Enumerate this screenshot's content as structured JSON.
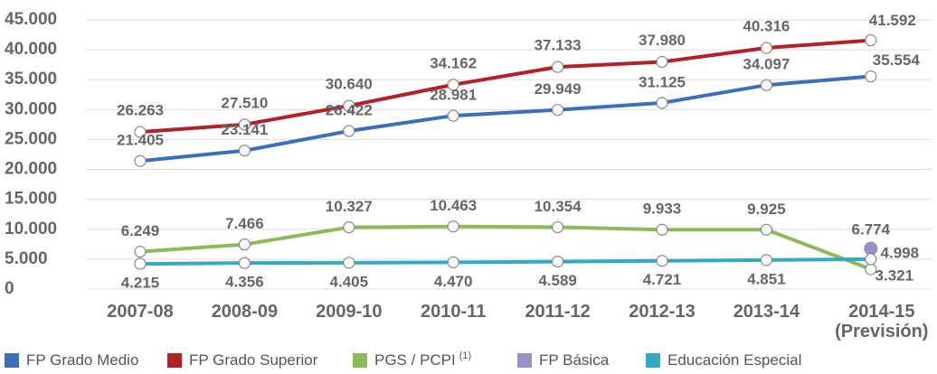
{
  "chart_data": {
    "type": "line",
    "categories": [
      "2007-08",
      "2008-09",
      "2009-10",
      "2010-11",
      "2011-12",
      "2012-13",
      "2013-14",
      "2014-15 (Previsión)"
    ],
    "ylim": [
      0,
      45000
    ],
    "yticks": [
      0,
      {
        "value": 5000,
        "label": "5.000"
      },
      {
        "value": 10000,
        "label": "10.000"
      },
      {
        "value": 15000,
        "label": "15.000"
      },
      {
        "value": 20000,
        "label": "20.000"
      },
      {
        "value": 25000,
        "label": "25.000"
      },
      {
        "value": 30000,
        "label": "30.000"
      },
      {
        "value": 35000,
        "label": "35.000"
      },
      {
        "value": 40000,
        "label": "40.000"
      },
      {
        "value": 45000,
        "label": "45.000"
      }
    ],
    "grid": true,
    "legend": "bottom",
    "series": [
      {
        "name": "FP Grado Medio",
        "color": "#3b70b8",
        "values": [
          21405,
          23141,
          26422,
          28981,
          29949,
          31125,
          34097,
          35554
        ],
        "value_labels": [
          "21.405",
          "23.141",
          "26.422",
          "28.981",
          "29.949",
          "31.125",
          "34.097",
          "35.554"
        ]
      },
      {
        "name": "FP Grado Superior",
        "color": "#b22126",
        "values": [
          26263,
          27510,
          30640,
          34162,
          37133,
          37980,
          40316,
          41592
        ],
        "value_labels": [
          "26.263",
          "27.510",
          "30.640",
          "34.162",
          "37.133",
          "37.980",
          "40.316",
          "41.592"
        ]
      },
      {
        "name": "PGS / PCPI",
        "superscript": "(1)",
        "color": "#8dba5b",
        "values": [
          6249,
          7466,
          10327,
          10463,
          10354,
          9933,
          9925,
          3321
        ],
        "value_labels": [
          "6.249",
          "7.466",
          "10.327",
          "10.463",
          "10.354",
          "9.933",
          "9.925",
          "3.321"
        ]
      },
      {
        "name": "FP Básica",
        "color": "#9a8fc8",
        "values": [
          null,
          null,
          null,
          null,
          null,
          null,
          null,
          6774
        ],
        "value_labels": [
          null,
          null,
          null,
          null,
          null,
          null,
          null,
          "6.774"
        ]
      },
      {
        "name": "Educación Especial",
        "color": "#35a9bf",
        "values": [
          4215,
          4356,
          4405,
          4470,
          4589,
          4721,
          4851,
          4998
        ],
        "value_labels": [
          "4.215",
          "4.356",
          "4.405",
          "4.470",
          "4.589",
          "4.721",
          "4.851",
          "4.998"
        ]
      }
    ]
  }
}
